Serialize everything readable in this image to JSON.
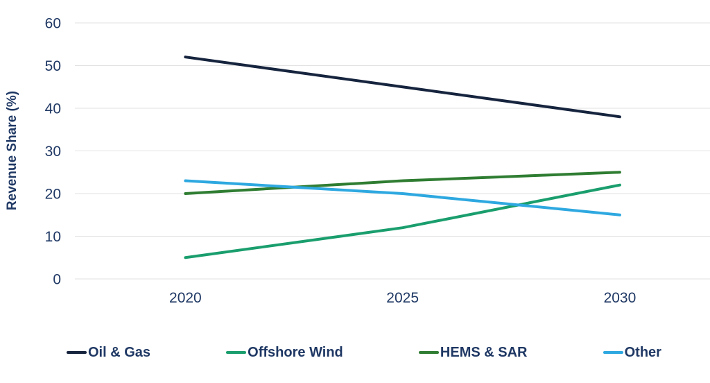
{
  "chart_data": {
    "type": "line",
    "title": "",
    "xlabel": "",
    "ylabel": "Revenue Share (%)",
    "categories": [
      "2020",
      "2025",
      "2030"
    ],
    "series": [
      {
        "name": "Oil & Gas",
        "values": [
          52,
          45,
          38
        ],
        "color": "#16243E"
      },
      {
        "name": "Offshore Wind",
        "values": [
          5,
          12,
          22
        ],
        "color": "#1A9E6E"
      },
      {
        "name": "HEMS & SAR",
        "values": [
          20,
          23,
          25
        ],
        "color": "#2F7D32"
      },
      {
        "name": "Other",
        "values": [
          23,
          20,
          15
        ],
        "color": "#2EA8E0"
      }
    ],
    "ylim": [
      0,
      60
    ],
    "yticks": [
      0,
      10,
      20,
      30,
      40,
      50,
      60
    ],
    "grid": "horizontal",
    "gridline_color": "#E2E2E2",
    "text_color": "#1F3864",
    "legend_position": "bottom",
    "legend_labels": [
      "Oil & Gas",
      "Offshore Wind",
      "HEMS & SAR",
      "Other"
    ]
  }
}
